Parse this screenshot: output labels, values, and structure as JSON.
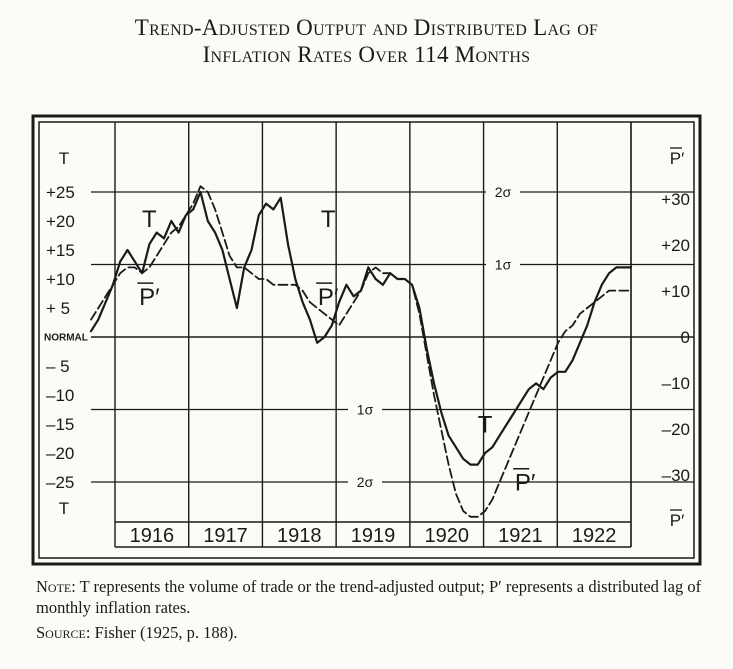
{
  "title_line1": "Trend-Adjusted Output and Distributed Lag of",
  "title_line2": "Inflation Rates Over 114 Months",
  "note": {
    "label": "Note:",
    "text": "T represents the volume of trade or the trend-adjusted output; P′ represents a distributed lag of monthly inflation rates."
  },
  "source": {
    "label": "Source:",
    "text": "Fisher (1925, p. 188)."
  },
  "chart_data": {
    "type": "line",
    "left_axis": {
      "symbol": "T",
      "ticks": [
        "+25",
        "+20",
        "+15",
        "+10",
        "+ 5",
        "NORMAL",
        "– 5",
        "–10",
        "–15",
        "–20",
        "–25"
      ],
      "tick_values": [
        25,
        20,
        15,
        10,
        5,
        0,
        -5,
        -10,
        -15,
        -20,
        -25
      ],
      "bottom_symbol": "T",
      "ylim": [
        -30,
        30
      ]
    },
    "right_axis": {
      "symbol": "P′",
      "ticks": [
        "+30",
        "+20",
        "+10",
        "0",
        "–10",
        "–20",
        "–30"
      ],
      "tick_values": [
        30,
        20,
        10,
        0,
        -10,
        -20,
        -30
      ],
      "bottom_symbol": "P′"
    },
    "years": [
      "1916",
      "1917",
      "1918",
      "1919",
      "1920",
      "1921",
      "1922"
    ],
    "sigma_lines": [
      {
        "label": "2σ",
        "value": 25
      },
      {
        "label": "1σ",
        "value": 12.5
      },
      {
        "label": "1σ",
        "value": -12.5
      },
      {
        "label": "2σ",
        "value": -25
      }
    ],
    "series": [
      {
        "name": "T",
        "style": "solid",
        "labels": [
          {
            "text": "T",
            "x": 1916.4,
            "y": 19
          },
          {
            "text": "T",
            "x": 1918.85,
            "y": 19
          },
          {
            "text": "T",
            "x": 1921.0,
            "y": -16.5
          }
        ],
        "x": [
          1915.6,
          1915.7,
          1915.8,
          1915.9,
          1916.0,
          1916.1,
          1916.2,
          1916.3,
          1916.4,
          1916.5,
          1916.6,
          1916.7,
          1916.8,
          1916.9,
          1917.0,
          1917.1,
          1917.2,
          1917.3,
          1917.4,
          1917.5,
          1917.6,
          1917.7,
          1917.8,
          1917.9,
          1918.0,
          1918.1,
          1918.2,
          1918.3,
          1918.4,
          1918.5,
          1918.6,
          1918.7,
          1918.8,
          1918.9,
          1919.0,
          1919.1,
          1919.2,
          1919.3,
          1919.4,
          1919.5,
          1919.6,
          1919.7,
          1919.8,
          1919.9,
          1920.0,
          1920.1,
          1920.2,
          1920.3,
          1920.4,
          1920.5,
          1920.6,
          1920.7,
          1920.8,
          1920.9,
          1921.0,
          1921.1,
          1921.2,
          1921.3,
          1921.4,
          1921.5,
          1921.6,
          1921.7,
          1921.8,
          1921.9,
          1922.0,
          1922.1,
          1922.2,
          1922.3,
          1922.4,
          1922.5,
          1922.6,
          1922.7,
          1922.8,
          1922.9,
          1923.0
        ],
        "y": [
          1,
          3,
          6,
          9,
          13,
          15,
          13,
          11,
          16,
          18,
          17,
          20,
          18,
          21,
          22,
          25,
          20,
          18,
          15,
          10,
          5,
          12,
          15,
          21,
          23,
          22,
          24,
          16,
          10,
          6,
          3,
          -1,
          0,
          2,
          6,
          9,
          7,
          8,
          12,
          10,
          9,
          11,
          10,
          10,
          9,
          5,
          -2,
          -8,
          -13,
          -17,
          -19,
          -21,
          -22,
          -22,
          -20,
          -19,
          -17,
          -15,
          -13,
          -11,
          -9,
          -8,
          -9,
          -7,
          -6,
          -6,
          -4,
          -1,
          2,
          6,
          9,
          11,
          12,
          12,
          12
        ]
      },
      {
        "name": "P′",
        "style": "dashed",
        "labels": [
          {
            "text": "P′",
            "x": 1916.4,
            "y": 5.5
          },
          {
            "text": "P′",
            "x": 1918.85,
            "y": 5.5
          },
          {
            "text": "P′",
            "x": 1921.55,
            "y": -26.5
          }
        ],
        "x": [
          1915.6,
          1915.7,
          1915.8,
          1915.9,
          1916.0,
          1916.1,
          1916.2,
          1916.3,
          1916.4,
          1916.5,
          1916.6,
          1916.7,
          1916.8,
          1916.9,
          1917.0,
          1917.1,
          1917.2,
          1917.3,
          1917.4,
          1917.5,
          1917.6,
          1917.7,
          1917.8,
          1917.9,
          1918.0,
          1918.1,
          1918.2,
          1918.3,
          1918.4,
          1918.5,
          1918.6,
          1918.7,
          1918.8,
          1918.9,
          1919.0,
          1919.1,
          1919.2,
          1919.3,
          1919.4,
          1919.5,
          1919.6,
          1919.7,
          1919.8,
          1919.9,
          1920.0,
          1920.1,
          1920.2,
          1920.3,
          1920.4,
          1920.5,
          1920.6,
          1920.7,
          1920.8,
          1920.9,
          1921.0,
          1921.1,
          1921.2,
          1921.3,
          1921.4,
          1921.5,
          1921.6,
          1921.7,
          1921.8,
          1921.9,
          1922.0,
          1922.1,
          1922.2,
          1922.3,
          1922.4,
          1922.5,
          1922.6,
          1922.7,
          1922.8,
          1922.9,
          1923.0
        ],
        "y": [
          3,
          5,
          7,
          9,
          11,
          12,
          12,
          11,
          12,
          14,
          16,
          18,
          19,
          21,
          23,
          26,
          25,
          22,
          18,
          14,
          12,
          12,
          11,
          10,
          10,
          9,
          9,
          9,
          9,
          8,
          6,
          5,
          4,
          3,
          2,
          4,
          6,
          8,
          11,
          12,
          11,
          11,
          10,
          10,
          9,
          4,
          -3,
          -10,
          -16,
          -22,
          -27,
          -30,
          -31,
          -31,
          -30,
          -28,
          -25,
          -22,
          -19,
          -16,
          -13,
          -10,
          -7,
          -4,
          -1,
          1,
          2,
          4,
          5,
          6,
          7,
          8,
          8,
          8,
          8
        ]
      }
    ]
  }
}
